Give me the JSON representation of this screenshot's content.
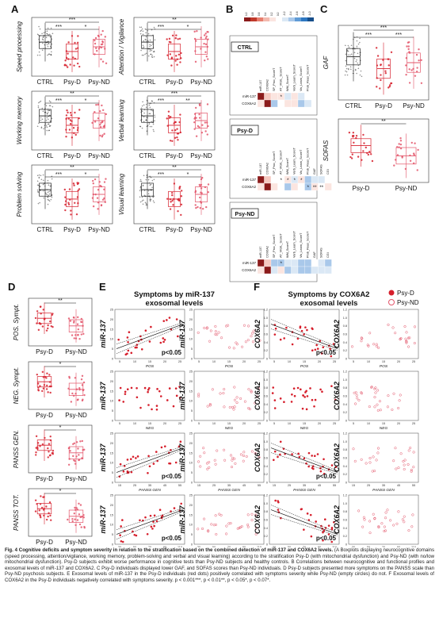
{
  "panel_letters": [
    "A",
    "B",
    "C",
    "D",
    "E",
    "F"
  ],
  "groups3": [
    "CTRL",
    "Psy-D",
    "Psy-ND"
  ],
  "groups2": [
    "Psy-D",
    "Psy-ND"
  ],
  "panelA": {
    "plots": [
      {
        "ylabel": "Speed processing",
        "sig": [
          "***",
          "***",
          "*"
        ]
      },
      {
        "ylabel": "Attention / Vigilance",
        "sig": [
          "**",
          "***",
          "*"
        ]
      },
      {
        "ylabel": "Working memory",
        "sig": [
          "**",
          "***",
          "*"
        ]
      },
      {
        "ylabel": "Verbal learning",
        "sig": [
          "***",
          "***",
          "**"
        ]
      },
      {
        "ylabel": "Problem solving",
        "sig": [
          "**",
          "***",
          "*"
        ]
      },
      {
        "ylabel": "Visual learning",
        "sig": [
          "**",
          "***",
          "*"
        ]
      }
    ]
  },
  "panelB": {
    "colorbar_ticks": [
      "1.0",
      "0.8",
      "0.6",
      "0.4",
      "0.2",
      "0.0",
      "-0.2",
      "-0.4",
      "-0.6",
      "-0.8",
      "-1.0"
    ],
    "blocks": [
      {
        "label": "CTRL",
        "rows": [
          "miR-137",
          "COX6A2"
        ],
        "cols": [
          "miR-137",
          "COX6A2",
          "SP_Proc_ScoreT",
          "AT_VIGIL_ScoreT",
          "WM_ScoreT",
          "Verb_Learn_ScoreT",
          "Vis_Learn_ScoreT",
          "Prob_Reas_ScoreT"
        ],
        "marks": [
          "*"
        ]
      },
      {
        "label": "Psy-D",
        "rows": [
          "miR-137",
          "COX6A2"
        ],
        "cols": [
          "miR-137",
          "COX6A2",
          "SP_Proc_ScoreT",
          "AT_VIGIL_ScoreT",
          "WM_ScoreT",
          "Verb_Learn_ScoreT",
          "Vis_Learn_ScoreT",
          "Prob_Reas_ScoreT",
          "GAF",
          "SOFAS",
          "CGI"
        ],
        "marks": [
          "*",
          "*",
          "*",
          "*",
          "*",
          "**",
          "**"
        ]
      },
      {
        "label": "Psy-ND",
        "rows": [
          "miR-137",
          "COX6A2"
        ],
        "cols": [
          "miR-137",
          "COX6A2",
          "SP_Proc_ScoreT",
          "AT_VIGIL_ScoreT",
          "WM_ScoreT",
          "Verb_Learn_ScoreT",
          "Vis_Learn_ScoreT",
          "Prob_Reas_ScoreT",
          "GAF",
          "SOFAS",
          "CGI"
        ],
        "marks": [
          "*"
        ]
      }
    ]
  },
  "panelC": {
    "plots": [
      {
        "ylabel": "GAF",
        "sig": [
          "***",
          "***",
          "***"
        ]
      },
      {
        "ylabel": "SOFAS",
        "sig": [
          "**"
        ]
      }
    ]
  },
  "panelD": {
    "plots": [
      {
        "ylabel": "POS. Sympt.",
        "sig": "**"
      },
      {
        "ylabel": "NEG. Sympt.",
        "sig": "*"
      },
      {
        "ylabel": "PANSS GEN.",
        "sig": "*"
      },
      {
        "ylabel": "PANSS TOT.",
        "sig": "*"
      }
    ]
  },
  "panelE": {
    "title_line1": "Symptoms by miR-137",
    "title_line2": "exosomal levels",
    "ylabel": "miR-137",
    "rows": [
      {
        "xlabel": "POS",
        "xticks": [
          "5",
          "10",
          "15",
          "20",
          "25"
        ],
        "pvalue": "p<0.05"
      },
      {
        "xlabel": "NEG",
        "xticks": [
          "5",
          "10",
          "15",
          "20",
          "25"
        ],
        "pvalue": ""
      },
      {
        "xlabel": "PANSS GEN",
        "xticks": [
          "15",
          "25",
          "35",
          "45",
          "55"
        ],
        "pvalue": "p<0.05"
      },
      {
        "xlabel": "PANSS TOTAL",
        "xticks": [
          "30",
          "50",
          "70",
          "90",
          "110"
        ],
        "pvalue": "p<0.05"
      }
    ],
    "yticks": [
      "0",
      "5",
      "10",
      "15",
      "20",
      "25"
    ]
  },
  "panelF": {
    "title_line1": "Symptoms by COX6A2",
    "title_line2": "exosomal levels",
    "ylabel": "COX6A2",
    "rows": [
      {
        "xlabel": "POS",
        "xticks": [
          "5",
          "10",
          "15",
          "20",
          "25"
        ],
        "pvalue": "p<0.05"
      },
      {
        "xlabel": "NEG",
        "xticks": [
          "5",
          "10",
          "15",
          "20",
          "25"
        ],
        "pvalue": ""
      },
      {
        "xlabel": "PANSS GEN",
        "xticks": [
          "15",
          "25",
          "35",
          "45",
          "55"
        ],
        "pvalue": "p<0.05"
      },
      {
        "xlabel": "PANSS TOTAL",
        "xticks": [
          "30",
          "50",
          "70",
          "90",
          "110"
        ],
        "pvalue": "p<0.05"
      }
    ],
    "yticks": [
      "0",
      "0.2",
      "0.4",
      "0.6",
      "0.8",
      "1.0",
      "1.2"
    ]
  },
  "legend": {
    "items": [
      "Psy-D",
      "Psy-ND"
    ]
  },
  "colors": {
    "ctrl": "#222222",
    "psyd": "#d61f2c",
    "psynd": "#e3556a",
    "pos": "#c0392b",
    "neg": "#2e78c2"
  },
  "caption": {
    "lead": "Fig. 4 Cognitive deficits and symptom severity in relation to the stratification based on the combined detection of miR-137 and COX6A2 levels.",
    "body": " (A Boxplots displaying neurocognitive domains (speed processing, attention/vigilance, working memory, problem-solving and verbal and visual learning) according to the stratification Psy-D (with mitochondrial dysfunction) and Psy-ND (with no/low mitochondrial dysfunction). Psy-D subjects exhibit worse performance in cognitive tests than Psy-ND subjects and healthy controls. B Correlations between neurocognitive and functional profiles and exosomal levels of miR-137 and COX6A2. C Psy-D individuals displayed lower GAF, and SOFAS scores than Psy-ND individuals. D Psy-D subjects presented more symptoms on the PANSS scale than Psy-ND psychosis subjects. E Exosomal levels of miR-137 in the Psy-D individuals (red dots) positively correlated with symptoms severity while Psy-ND (empty circles) do not. F Exosomal levels of COX6A2 in the Psy-D individuals negatively correlated with symptoms severity. p < 0.001***, p < 0.01**, p < 0.05*, p < 0.07*."
  }
}
